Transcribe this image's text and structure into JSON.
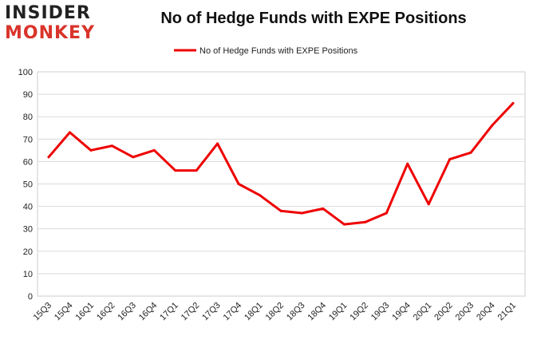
{
  "brand": {
    "logo_line1": "INSIDER",
    "logo_line2": "MONKEY",
    "logo_colors": {
      "line1": "#222222",
      "line2": "#d9342b"
    }
  },
  "chart_data": {
    "type": "line",
    "title": "No of Hedge Funds with EXPE Positions",
    "xlabel": "",
    "ylabel": "",
    "ylim": [
      0,
      100
    ],
    "yticks": [
      0,
      10,
      20,
      30,
      40,
      50,
      60,
      70,
      80,
      90,
      100
    ],
    "grid": true,
    "legend": "top-center",
    "categories": [
      "15Q3",
      "15Q4",
      "16Q1",
      "16Q2",
      "16Q3",
      "16Q4",
      "17Q1",
      "17Q2",
      "17Q3",
      "17Q4",
      "18Q1",
      "18Q2",
      "18Q3",
      "18Q4",
      "19Q1",
      "19Q2",
      "19Q3",
      "19Q4",
      "20Q1",
      "20Q2",
      "20Q3",
      "20Q4",
      "21Q1"
    ],
    "series": [
      {
        "name": "No of Hedge Funds with EXPE Positions",
        "color": "#ee0000",
        "values": [
          62,
          73,
          65,
          67,
          62,
          65,
          56,
          56,
          68,
          50,
          45,
          38,
          37,
          39,
          32,
          33,
          37,
          59,
          41,
          61,
          64,
          76,
          86
        ]
      }
    ]
  }
}
